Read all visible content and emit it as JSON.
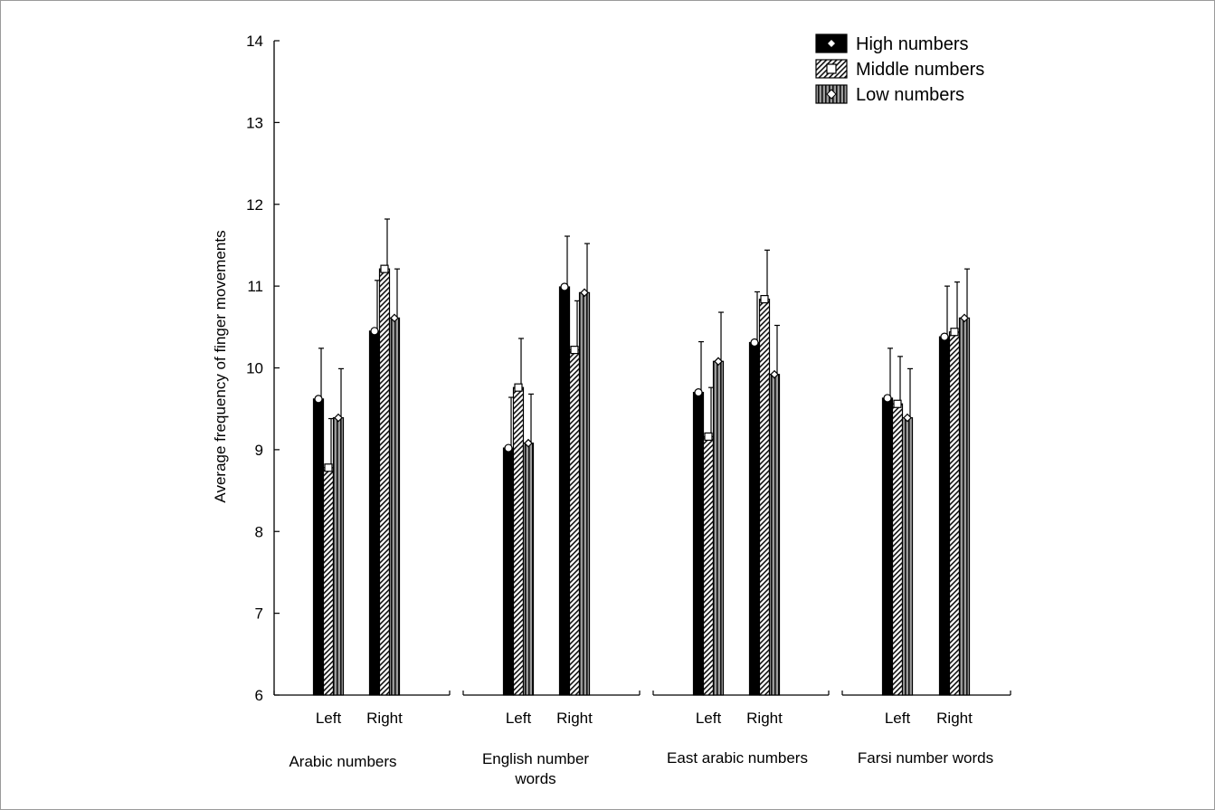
{
  "chart_data": {
    "type": "bar",
    "ylabel": "Average frequency of finger movements",
    "ylim": [
      6,
      14
    ],
    "yticks": [
      "6",
      "7",
      "8",
      "9",
      "10",
      "11",
      "12",
      "13",
      "14"
    ],
    "groups": [
      {
        "label": "Arabic numbers",
        "subcategories": [
          "Left",
          "Right"
        ]
      },
      {
        "label": "English number words",
        "subcategories": [
          "Left",
          "Right"
        ]
      },
      {
        "label": "East arabic numbers",
        "subcategories": [
          "Left",
          "Right"
        ]
      },
      {
        "label": "Farsi number words",
        "subcategories": [
          "Left",
          "Right"
        ]
      }
    ],
    "series": [
      {
        "name": "High numbers",
        "values": [
          9.62,
          10.45,
          9.02,
          10.99,
          9.7,
          10.31,
          9.63,
          10.38
        ],
        "error": [
          0.62,
          0.62,
          0.62,
          0.62,
          0.62,
          0.62,
          0.61,
          0.62
        ]
      },
      {
        "name": "Middle numbers",
        "values": [
          8.78,
          11.21,
          9.76,
          10.22,
          9.16,
          10.84,
          9.56,
          10.44
        ],
        "error": [
          0.6,
          0.61,
          0.6,
          0.6,
          0.6,
          0.6,
          0.58,
          0.61
        ]
      },
      {
        "name": "Low numbers",
        "values": [
          9.39,
          10.61,
          9.08,
          10.92,
          10.08,
          9.92,
          9.39,
          10.61
        ],
        "error": [
          0.6,
          0.6,
          0.6,
          0.6,
          0.6,
          0.6,
          0.6,
          0.6
        ]
      }
    ],
    "legend_position": "top-right",
    "grid": false
  }
}
